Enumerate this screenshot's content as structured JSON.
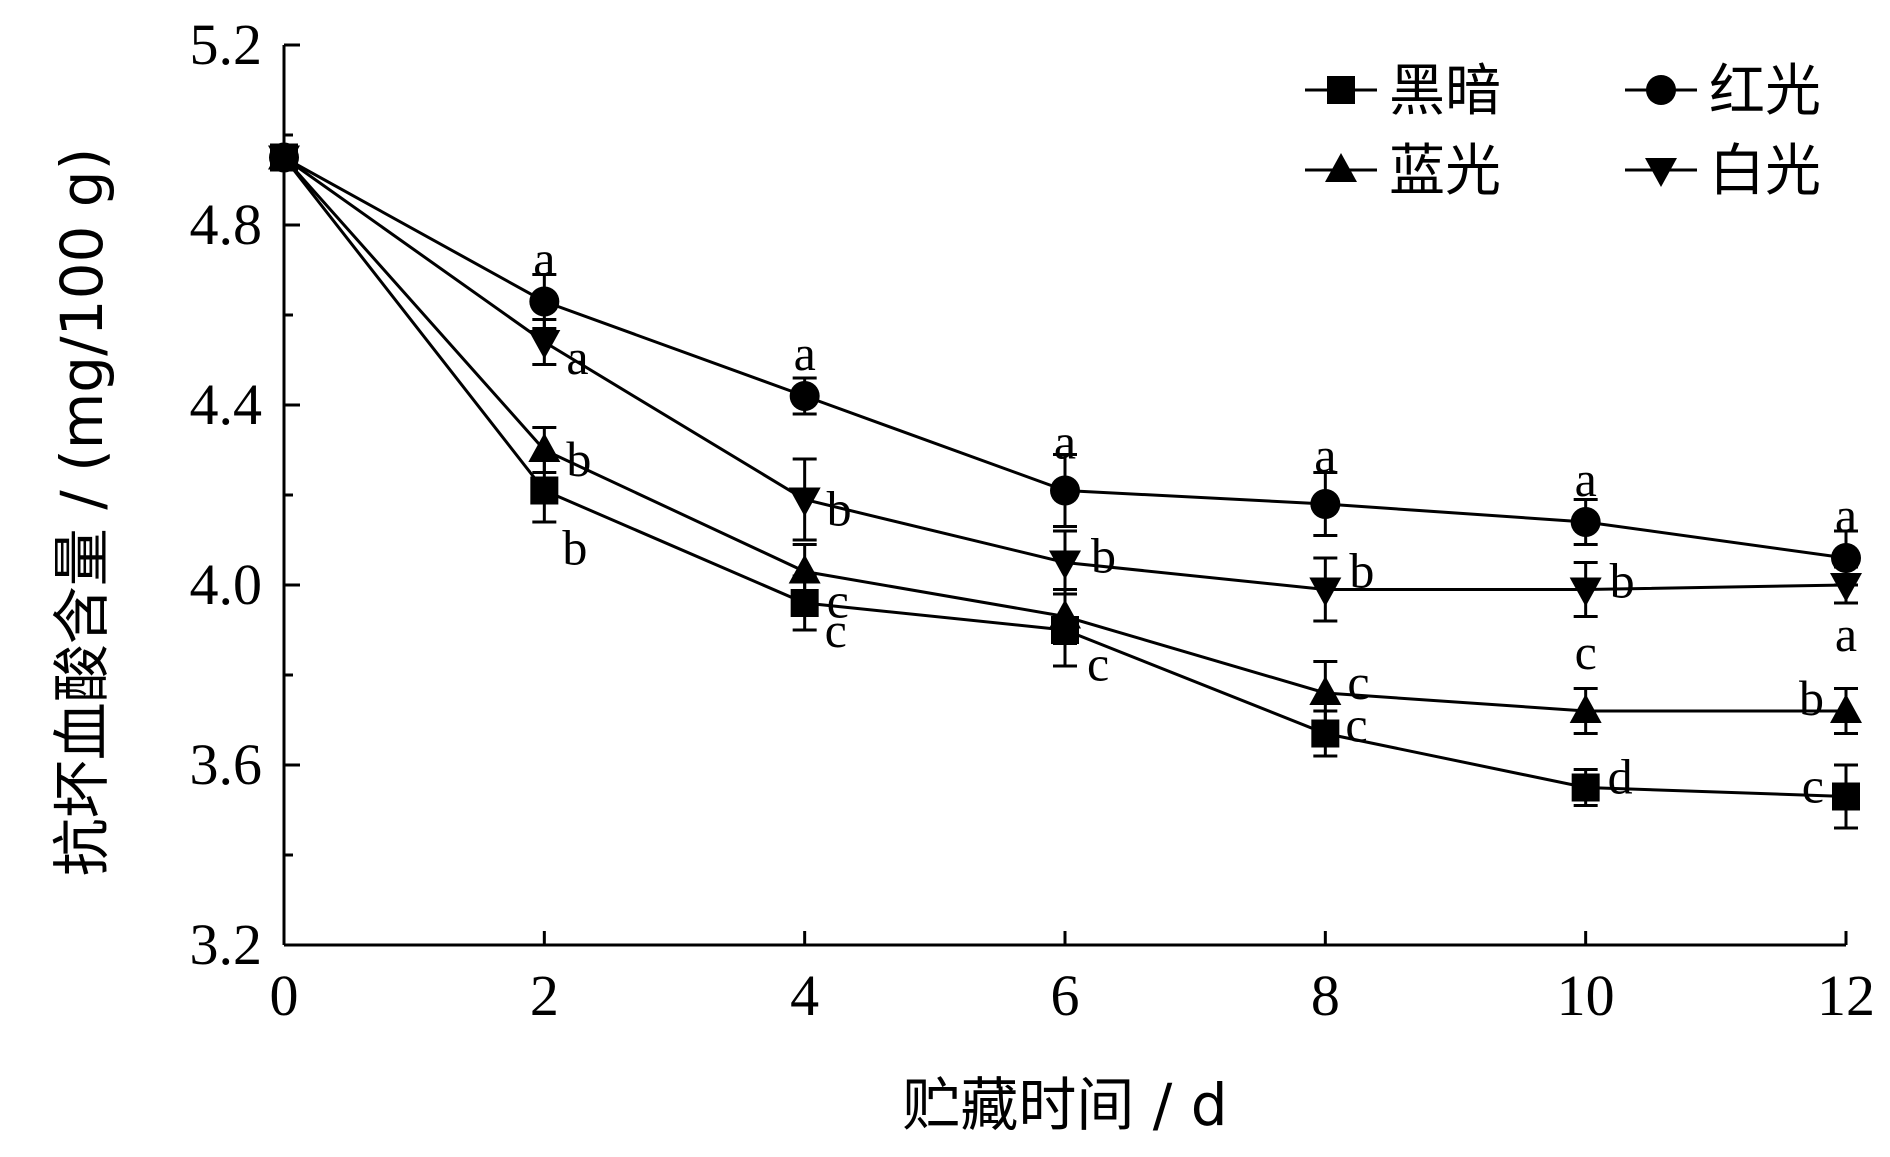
{
  "chart_data": {
    "type": "line",
    "xlabel": "贮藏时间 / d",
    "ylabel": "抗坏血酸含量 / (mg/100 g)",
    "xlim": [
      0,
      12
    ],
    "ylim": [
      3.2,
      5.2
    ],
    "xticks": [
      0,
      2,
      4,
      6,
      8,
      10,
      12
    ],
    "xtick_labels": [
      "0",
      "2",
      "4",
      "6",
      "8",
      "10",
      "12"
    ],
    "yticks": [
      3.2,
      3.6,
      4.0,
      4.4,
      4.8,
      5.2
    ],
    "ytick_labels": [
      "3.2",
      "3.6",
      "4.0",
      "4.4",
      "4.8",
      "5.2"
    ],
    "legend_position": "top-right",
    "grid": false,
    "x": [
      0,
      2,
      4,
      6,
      8,
      10,
      12
    ],
    "series": [
      {
        "name": "黑暗",
        "marker": "square",
        "values": [
          4.95,
          4.21,
          3.96,
          3.9,
          3.67,
          3.55,
          3.53
        ],
        "errors": [
          0.02,
          0.07,
          0.06,
          0.08,
          0.05,
          0.04,
          0.07
        ],
        "labels": [
          "",
          "b",
          "c",
          "",
          "c",
          "d",
          "c"
        ]
      },
      {
        "name": "红光",
        "marker": "circle",
        "values": [
          4.95,
          4.63,
          4.42,
          4.21,
          4.18,
          4.14,
          4.06
        ],
        "errors": [
          0.02,
          0.06,
          0.04,
          0.08,
          0.07,
          0.05,
          0.06
        ],
        "labels": [
          "",
          "a",
          "a",
          "a",
          "a",
          "a",
          "a"
        ]
      },
      {
        "name": "蓝光",
        "marker": "triangle-up",
        "values": [
          4.95,
          4.3,
          4.03,
          3.93,
          3.76,
          3.72,
          3.72
        ],
        "errors": [
          0.02,
          0.05,
          0.06,
          0.06,
          0.07,
          0.05,
          0.05
        ],
        "labels": [
          "",
          "b",
          "c",
          "c",
          "c",
          "c",
          "b"
        ]
      },
      {
        "name": "白光",
        "marker": "triangle-down",
        "values": [
          4.95,
          4.54,
          4.19,
          4.05,
          3.99,
          3.99,
          4.0
        ],
        "errors": [
          0.02,
          0.05,
          0.09,
          0.07,
          0.07,
          0.06,
          0.04
        ],
        "labels": [
          "",
          "a",
          "b",
          "b",
          "b",
          "b",
          "a"
        ]
      }
    ]
  }
}
